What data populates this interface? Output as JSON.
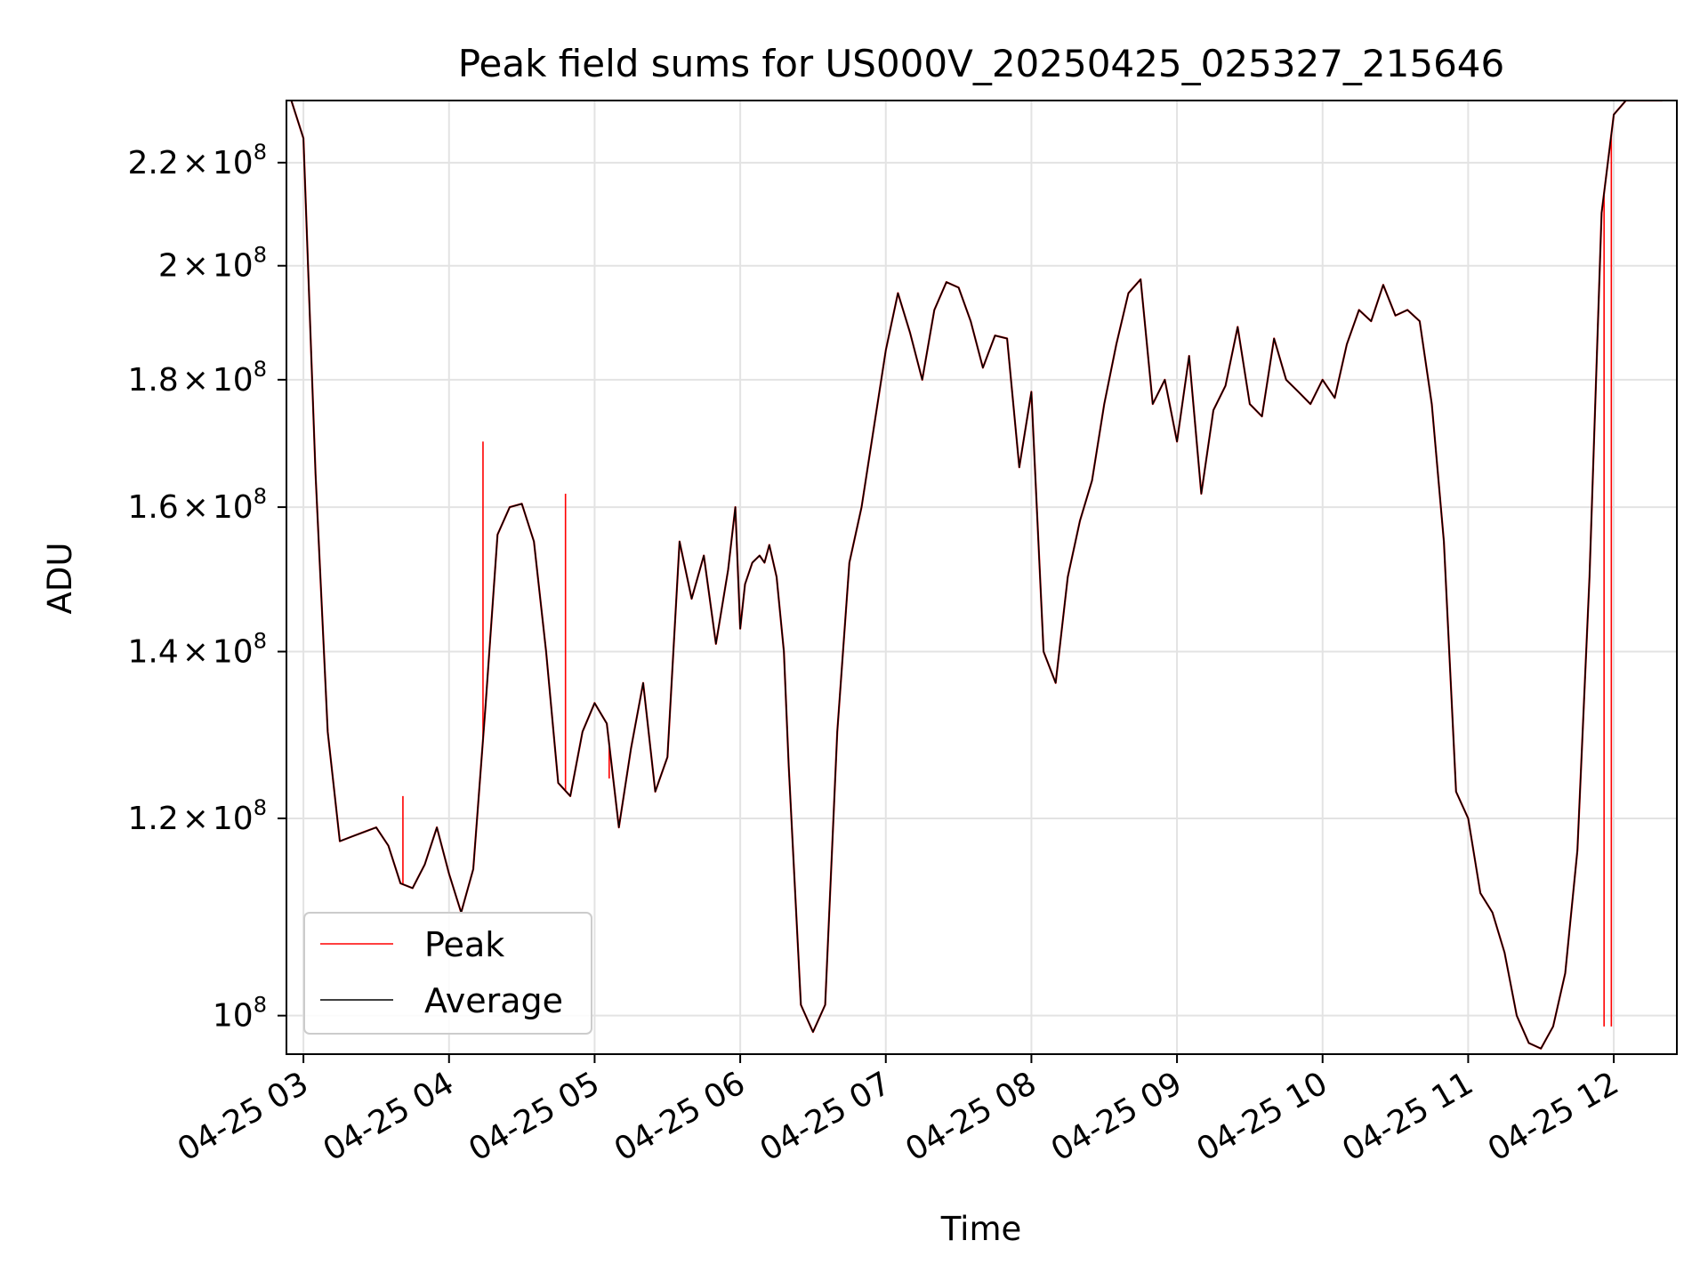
{
  "chart_data": {
    "type": "line",
    "title": "Peak field sums for US000V_20250425_025327_215646",
    "xlabel": "Time",
    "ylabel": "ADU",
    "x_ticks": [
      "04-25 03",
      "04-25 04",
      "04-25 05",
      "04-25 06",
      "04-25 07",
      "04-25 08",
      "04-25 09",
      "04-25 10",
      "04-25 11",
      "04-25 12"
    ],
    "y_ticks": [
      {
        "value": 100000000,
        "mant": "",
        "exp": "8",
        "base": "10"
      },
      {
        "value": 120000000,
        "mant": "1.2",
        "exp": "8",
        "base": "10"
      },
      {
        "value": 140000000,
        "mant": "1.4",
        "exp": "8",
        "base": "10"
      },
      {
        "value": 160000000,
        "mant": "1.6",
        "exp": "8",
        "base": "10"
      },
      {
        "value": 180000000,
        "mant": "1.8",
        "exp": "8",
        "base": "10"
      },
      {
        "value": 200000000,
        "mant": "2",
        "exp": "8",
        "base": "10"
      },
      {
        "value": 220000000,
        "mant": "2.2",
        "exp": "8",
        "base": "10"
      }
    ],
    "times_symbol": "×",
    "yscale": "log",
    "xlim": [
      "04-25 02:53",
      "04-25 12:26"
    ],
    "ylim": [
      96500000,
      233000000
    ],
    "grid": true,
    "legend_position": "lower-left",
    "series": [
      {
        "name": "Peak",
        "color": "#ff0000"
      },
      {
        "name": "Average",
        "color": "#000000"
      }
    ],
    "x": [
      "02:55",
      "03:00",
      "03:05",
      "03:10",
      "03:15",
      "03:20",
      "03:25",
      "03:30",
      "03:35",
      "03:40",
      "03:45",
      "03:50",
      "03:55",
      "04:00",
      "04:05",
      "04:10",
      "04:15",
      "04:20",
      "04:25",
      "04:30",
      "04:35",
      "04:40",
      "04:45",
      "04:50",
      "04:55",
      "05:00",
      "05:05",
      "05:10",
      "05:15",
      "05:20",
      "05:25",
      "05:30",
      "05:35",
      "05:40",
      "05:45",
      "05:50",
      "05:55",
      "05:58",
      "06:00",
      "06:02",
      "06:05",
      "06:08",
      "06:10",
      "06:12",
      "06:15",
      "06:18",
      "06:20",
      "06:25",
      "06:30",
      "06:35",
      "06:40",
      "06:45",
      "06:50",
      "06:55",
      "07:00",
      "07:05",
      "07:10",
      "07:15",
      "07:20",
      "07:25",
      "07:30",
      "07:35",
      "07:40",
      "07:45",
      "07:50",
      "07:55",
      "08:00",
      "08:05",
      "08:10",
      "08:15",
      "08:20",
      "08:25",
      "08:30",
      "08:35",
      "08:40",
      "08:45",
      "08:50",
      "08:55",
      "09:00",
      "09:05",
      "09:10",
      "09:15",
      "09:20",
      "09:25",
      "09:30",
      "09:35",
      "09:40",
      "09:45",
      "09:50",
      "09:55",
      "10:00",
      "10:05",
      "10:10",
      "10:15",
      "10:20",
      "10:25",
      "10:30",
      "10:35",
      "10:40",
      "10:45",
      "10:50",
      "10:55",
      "11:00",
      "11:05",
      "11:10",
      "11:15",
      "11:20",
      "11:25",
      "11:30",
      "11:35",
      "11:40",
      "11:45",
      "11:50",
      "11:55",
      "12:00",
      "12:05",
      "12:10",
      "12:15",
      "12:20"
    ],
    "average": [
      233000000,
      225000000,
      165000000,
      130000000,
      117500000,
      118000000,
      118500000,
      119000000,
      117000000,
      113000000,
      112500000,
      115000000,
      119000000,
      114000000,
      110000000,
      114500000,
      133000000,
      156000000,
      160000000,
      160500000,
      155000000,
      140000000,
      124000000,
      122500000,
      130000000,
      133500000,
      131000000,
      119000000,
      128000000,
      136000000,
      123000000,
      127000000,
      155000000,
      147000000,
      153000000,
      141000000,
      151000000,
      160000000,
      143000000,
      149000000,
      152000000,
      153000000,
      152000000,
      154500000,
      150000000,
      140000000,
      126000000,
      101000000,
      98500000,
      101000000,
      130000000,
      152000000,
      160000000,
      172000000,
      185000000,
      195000000,
      188000000,
      180000000,
      192000000,
      197000000,
      196000000,
      190000000,
      182000000,
      187500000,
      187000000,
      166000000,
      178000000,
      140000000,
      136000000,
      150000000,
      158000000,
      164000000,
      176000000,
      186000000,
      195000000,
      197500000,
      176000000,
      180000000,
      170000000,
      184000000,
      162000000,
      175000000,
      179000000,
      189000000,
      176000000,
      174000000,
      187000000,
      180000000,
      178000000,
      176000000,
      180000000,
      177000000,
      186000000,
      192000000,
      190000000,
      196500000,
      191000000,
      192000000,
      190000000,
      176000000,
      155000000,
      123000000,
      120000000,
      112000000,
      110000000,
      106000000,
      100000000,
      97500000,
      97000000,
      99000000,
      104000000,
      116500000,
      150000000,
      210000000,
      230000000,
      233000000,
      233000000,
      233000000,
      233000000
    ],
    "peak_spikes": [
      {
        "t": "04:14",
        "v": 170000000
      },
      {
        "t": "03:41",
        "v": 122500000
      },
      {
        "t": "04:48",
        "v": 162000000
      },
      {
        "t": "05:06",
        "v": 124500000
      },
      {
        "t": "11:56",
        "v": 99000000
      },
      {
        "t": "11:59",
        "v": 99000000
      }
    ]
  }
}
